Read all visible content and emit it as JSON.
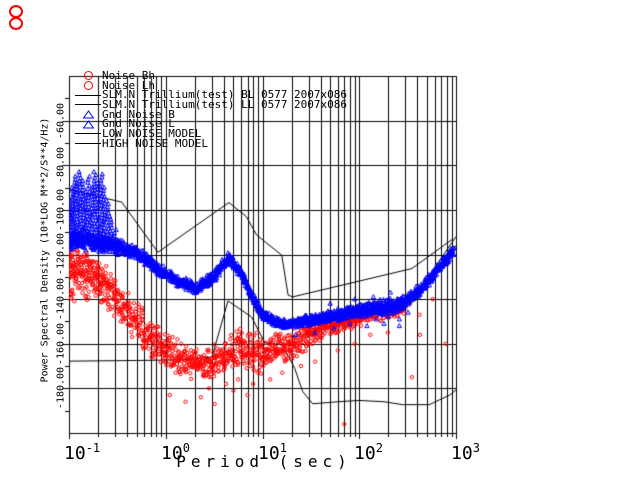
{
  "icon": {
    "name": "red-rings-icon",
    "color": "#ff0000"
  },
  "chart_data": {
    "type": "scatter",
    "title": "",
    "xlabel": "Period (sec)",
    "ylabel": "Power Spectral Density (10*LOG M**2/S**4/Hz)",
    "x_scale": "log",
    "xlim": [
      0.1,
      1000
    ],
    "ylim": [
      -200,
      -40
    ],
    "x_ticks": [
      {
        "base": "10",
        "exp": "-1"
      },
      {
        "base": "10",
        "exp": "0"
      },
      {
        "base": "10",
        "exp": "1"
      },
      {
        "base": "10",
        "exp": "2"
      },
      {
        "base": "10",
        "exp": "3"
      }
    ],
    "y_ticks": [
      "-60.00",
      "-80.00",
      "-100.00",
      "-120.00",
      "-140.00",
      "-160.00",
      "-180.00"
    ],
    "y_tick_values": [
      -60,
      -80,
      -100,
      -120,
      -140,
      -160,
      -180
    ],
    "y_minor_tick_values": [
      -50,
      -70,
      -90,
      -110,
      -130,
      -150,
      -170,
      -190
    ],
    "grid": {
      "x_log_minor_lines": true,
      "y_major_step": 20,
      "legend_position": "top-left"
    },
    "colors": {
      "noise": "#ff0000",
      "gnd": "#0000ff",
      "model": "#000000",
      "background": "#ffffff"
    },
    "legend": [
      {
        "marker": "circle",
        "color": "#ff0000",
        "label": "Noise Bh"
      },
      {
        "marker": "circle",
        "color": "#ff0000",
        "label": "Noise Lh"
      },
      {
        "marker": "line",
        "color": "#000000",
        "label": "SLM.N Trillium(test) BL 0577 2007x086"
      },
      {
        "marker": "line",
        "color": "#000000",
        "label": "SLM.N Trillium(test) LL 0577 2007x086"
      },
      {
        "marker": "triangle",
        "color": "#0000ff",
        "label": "Gnd Noise B"
      },
      {
        "marker": "triangle",
        "color": "#0000ff",
        "label": "Gnd Noise L"
      },
      {
        "marker": "line",
        "color": "#000000",
        "label": "LOW NOISE MODEL"
      },
      {
        "marker": "line",
        "color": "#000000",
        "label": "HIGH NOISE MODEL"
      }
    ],
    "models": {
      "high_noise_model": [
        [
          0.1,
          -91
        ],
        [
          0.35,
          -96.5
        ],
        [
          0.83,
          -119
        ],
        [
          4.5,
          -96.7
        ],
        [
          6.8,
          -103
        ],
        [
          8.7,
          -111.3
        ],
        [
          15.8,
          -120.3
        ],
        [
          18.4,
          -138.2
        ],
        [
          20.5,
          -139
        ],
        [
          350,
          -126.3
        ],
        [
          930,
          -113
        ]
      ],
      "low_noise_model": [
        [
          0.1,
          -167.8
        ],
        [
          0.5,
          -167.5
        ],
        [
          1.5,
          -167.2
        ],
        [
          3.0,
          -166
        ],
        [
          4.4,
          -140.8
        ],
        [
          7.7,
          -148
        ],
        [
          10.6,
          -159.6
        ],
        [
          16,
          -160.4
        ],
        [
          21.5,
          -171
        ],
        [
          26,
          -181.4
        ],
        [
          33,
          -186.9
        ],
        [
          60,
          -186
        ],
        [
          100,
          -185.4
        ],
        [
          180,
          -186
        ],
        [
          280,
          -187.3
        ],
        [
          530,
          -187.3
        ],
        [
          860,
          -183
        ],
        [
          1000,
          -180.7
        ]
      ],
      "slm_bl": [
        [
          200,
          -146
        ],
        [
          400,
          -137
        ],
        [
          1000,
          -112
        ]
      ],
      "slm_ll": [
        [
          200,
          -148
        ],
        [
          400,
          -140
        ],
        [
          1000,
          -116
        ]
      ]
    },
    "series": {
      "red_band": {
        "name": "Noise Bh/Lh",
        "marker": "circle",
        "color": "#ff0000",
        "density": 3,
        "points": [
          [
            0.1,
            -131,
            14
          ],
          [
            0.13,
            -128,
            12
          ],
          [
            0.16,
            -129,
            12
          ],
          [
            0.2,
            -132,
            12
          ],
          [
            0.3,
            -140,
            11
          ],
          [
            0.45,
            -148,
            10
          ],
          [
            0.7,
            -157,
            10
          ],
          [
            1.0,
            -163,
            9
          ],
          [
            1.5,
            -167,
            9
          ],
          [
            2.5,
            -169,
            9
          ],
          [
            4.0,
            -166,
            9
          ],
          [
            6.0,
            -162,
            10
          ],
          [
            9.0,
            -165,
            10
          ],
          [
            14,
            -162,
            8
          ],
          [
            20,
            -160,
            8
          ],
          [
            30,
            -156,
            7
          ],
          [
            45,
            -152,
            6
          ],
          [
            70,
            -150,
            5
          ],
          [
            100,
            -148,
            5
          ],
          [
            150,
            -146,
            5
          ],
          [
            220,
            -145,
            4
          ],
          [
            300,
            -143,
            4
          ]
        ],
        "spikes": [
          [
            0.102,
            -116
          ],
          [
            0.11,
            -120
          ],
          [
            0.12,
            -118
          ],
          [
            0.135,
            -121
          ],
          [
            0.15,
            -119
          ],
          [
            0.165,
            -123
          ],
          [
            0.18,
            -126
          ],
          [
            0.2,
            -124
          ],
          [
            0.22,
            -129
          ],
          [
            0.25,
            -133
          ],
          [
            0.29,
            -137
          ]
        ],
        "outliers": [
          [
            1.1,
            -183
          ],
          [
            1.6,
            -186
          ],
          [
            2.3,
            -184
          ],
          [
            3.2,
            -187
          ],
          [
            2.8,
            -180
          ],
          [
            5,
            -181
          ],
          [
            7,
            -183
          ],
          [
            4.2,
            -178
          ],
          [
            5.6,
            -176
          ],
          [
            8,
            -178
          ],
          [
            12,
            -176
          ],
          [
            16,
            -173
          ],
          [
            25,
            -170
          ],
          [
            35,
            -168
          ],
          [
            60,
            -163
          ],
          [
            90,
            -160
          ],
          [
            130,
            -156
          ],
          [
            350,
            -175
          ],
          [
            70,
            -196
          ],
          [
            198,
            -155
          ],
          [
            265,
            -140
          ],
          [
            334,
            -142
          ],
          [
            424,
            -156
          ],
          [
            575,
            -140
          ],
          [
            780,
            -160
          ],
          [
            420,
            -147
          ],
          [
            380,
            -137
          ]
        ]
      },
      "blue_band": {
        "name": "Gnd Noise B/L",
        "marker": "triangle",
        "color": "#0000ff",
        "density": 4,
        "points": [
          [
            0.1,
            -115,
            4
          ],
          [
            0.13,
            -113,
            5
          ],
          [
            0.2,
            -114.5,
            5
          ],
          [
            0.3,
            -116,
            4
          ],
          [
            0.5,
            -119,
            3.5
          ],
          [
            0.8,
            -126,
            3
          ],
          [
            1.2,
            -131,
            3
          ],
          [
            2.0,
            -135,
            3
          ],
          [
            3.0,
            -130.5,
            3
          ],
          [
            4.5,
            -121.5,
            2.5
          ],
          [
            6.0,
            -128,
            2.5
          ],
          [
            8.0,
            -140,
            2.5
          ],
          [
            10,
            -147,
            2.5
          ],
          [
            13,
            -150,
            2.5
          ],
          [
            18,
            -151.5,
            2.2
          ],
          [
            25,
            -150,
            2.5
          ],
          [
            40,
            -148.5,
            2.5
          ],
          [
            60,
            -147,
            3
          ],
          [
            100,
            -145,
            3.5
          ],
          [
            160,
            -144,
            4
          ],
          [
            250,
            -142.5,
            4
          ],
          [
            300,
            -141,
            3.5
          ],
          [
            420,
            -136,
            3
          ],
          [
            600,
            -128,
            2.5
          ],
          [
            780,
            -122.5,
            2.5
          ],
          [
            930,
            -118.5,
            2.5
          ]
        ],
        "spikes": [
          [
            0.102,
            -96
          ],
          [
            0.108,
            -90
          ],
          [
            0.115,
            -85
          ],
          [
            0.122,
            -88
          ],
          [
            0.13,
            -83
          ],
          [
            0.14,
            -87
          ],
          [
            0.15,
            -92
          ],
          [
            0.16,
            -85
          ],
          [
            0.172,
            -90
          ],
          [
            0.185,
            -83
          ],
          [
            0.2,
            -88
          ],
          [
            0.215,
            -84
          ],
          [
            0.23,
            -90
          ],
          [
            0.25,
            -96
          ],
          [
            0.27,
            -103
          ],
          [
            0.3,
            -109
          ]
        ],
        "outliers": [
          [
            22,
            -156
          ],
          [
            35,
            -155
          ],
          [
            55,
            -153
          ],
          [
            80,
            -151
          ],
          [
            120,
            -152
          ],
          [
            150,
            -149
          ],
          [
            200,
            -148
          ],
          [
            260,
            -149
          ],
          [
            320,
            -146
          ],
          [
            50,
            -142
          ],
          [
            90,
            -140
          ],
          [
            140,
            -139
          ],
          [
            210,
            -137
          ],
          [
            260,
            -152
          ],
          [
            180,
            -151
          ]
        ]
      }
    }
  }
}
